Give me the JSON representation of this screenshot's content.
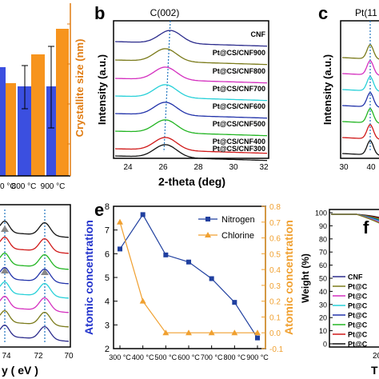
{
  "panels": {
    "a": {
      "label": "",
      "ylabel_right": "Crystallite size (nm)",
      "tick_labels": [
        "0 °C",
        "800 °C",
        "900 °C"
      ],
      "colors": {
        "blue": "#3b4fe0",
        "orange": "#f7941d",
        "axis_right": "#e07b10"
      }
    },
    "b": {
      "label": "b",
      "peak_label": "C(002)",
      "ylabel": "Intensity (a.u.)",
      "xlabel": "2-theta (deg)",
      "xticks": [
        "24",
        "26",
        "28",
        "30",
        "32"
      ],
      "series": [
        {
          "name": "CNF",
          "color": "#2b2b8c"
        },
        {
          "name": "Pt@CS/CNF900",
          "color": "#7a7a1a"
        },
        {
          "name": "Pt@CS/CNF800",
          "color": "#d42fbf"
        },
        {
          "name": "Pt@CS/CNF700",
          "color": "#27d0d8"
        },
        {
          "name": "Pt@CS/CNF600",
          "color": "#2233aa"
        },
        {
          "name": "Pt@CS/CNF500",
          "color": "#22b522"
        },
        {
          "name": "Pt@CS/CNF400",
          "color": "#d01818"
        },
        {
          "name": "Pt@CS/CNF300",
          "color": "#111111"
        }
      ]
    },
    "c": {
      "label": "c",
      "peak_label": "Pt(11",
      "ylabel": "Intensity (a.u.)",
      "xticks": [
        "30",
        "40"
      ]
    },
    "d": {
      "label": "",
      "xlabel": "y ( eV )",
      "xticks": [
        "74",
        "72",
        "70"
      ]
    },
    "f": {
      "label": "f",
      "ylabel": "Weight (%)",
      "yticks": [
        "100",
        "90",
        "80",
        "70",
        "60",
        "50",
        "40",
        "30",
        "20",
        "10",
        "0"
      ],
      "xtick_partial": "20",
      "xlabel_partial": "T",
      "legend": [
        "CNF",
        "Pt@C",
        "Pt@C",
        "Pt@C",
        "Pt@C",
        "Pt@C",
        "Pt@C",
        "Pt@C"
      ]
    }
  },
  "chart_data": {
    "type": "line",
    "panel": "e",
    "label": "e",
    "categories": [
      "300 °C",
      "400 °C",
      "500 °C",
      "600 °C",
      "700 °C",
      "800 °C",
      "900 °C"
    ],
    "series": [
      {
        "name": "Nitrogen",
        "axis": "left",
        "color": "#1f3f9f",
        "marker": "square",
        "values": [
          6.2,
          7.65,
          5.95,
          5.65,
          4.95,
          3.95,
          2.45
        ]
      },
      {
        "name": "Chlorine",
        "axis": "right",
        "color": "#f0a030",
        "marker": "triangle",
        "values": [
          0.7,
          0.2,
          0.0,
          0.0,
          0.0,
          0.0,
          0.0
        ]
      }
    ],
    "ylabel_left": "Atomic concentration",
    "ylabel_right": "Atomic concentration",
    "ylim_left": [
      2,
      8
    ],
    "ylim_right": [
      -0.1,
      0.8
    ],
    "yticks_left": [
      "2",
      "3",
      "4",
      "5",
      "6",
      "7",
      "8"
    ],
    "yticks_right": [
      "-0.1",
      "0.0",
      "0.1",
      "0.2",
      "0.3",
      "0.4",
      "0.5",
      "0.6",
      "0.7",
      "0.8"
    ],
    "grid": false,
    "legend_position": "top-right"
  }
}
